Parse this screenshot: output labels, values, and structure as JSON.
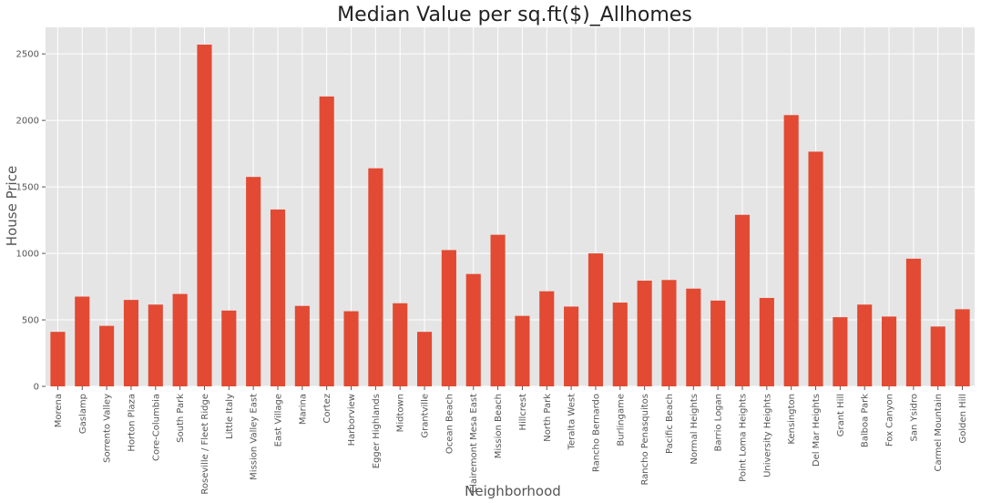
{
  "chart_data": {
    "type": "bar",
    "title": "Median Value per sq.ft($)_Allhomes",
    "xlabel": "Neighborhood",
    "ylabel": "House Price",
    "ylim": [
      0,
      2700
    ],
    "yticks": [
      0,
      500,
      1000,
      1500,
      2000,
      2500
    ],
    "grid": true,
    "categories": [
      "Morena",
      "Gaslamp",
      "Sorrento Valley",
      "Horton Plaza",
      "Core-Columbia",
      "South Park",
      "Roseville / Fleet Ridge",
      "Little Italy",
      "Mission Valley East",
      "East Village",
      "Marina",
      "Cortez",
      "Harborview",
      "Egger Highlands",
      "Midtown",
      "Grantville",
      "Ocean Beach",
      "Clairemont Mesa East",
      "Mission Beach",
      "Hillcrest",
      "North Park",
      "Teralta West",
      "Rancho Bernardo",
      "Burlingame",
      "Rancho Penasquitos",
      "Pacific Beach",
      "Normal Heights",
      "Barrio Logan",
      "Point Loma Heights",
      "University Heights",
      "Kensington",
      "Del Mar Heights",
      "Grant Hill",
      "Balboa Park",
      "Fox Canyon",
      "San Ysidro",
      "Carmel Mountain",
      "Golden Hill"
    ],
    "values": [
      410,
      675,
      455,
      650,
      615,
      695,
      2570,
      570,
      1575,
      1330,
      605,
      2180,
      565,
      1640,
      625,
      410,
      1025,
      845,
      1140,
      530,
      715,
      600,
      1000,
      630,
      795,
      800,
      735,
      645,
      1290,
      665,
      2040,
      1765,
      520,
      615,
      525,
      960,
      450,
      580
    ],
    "colors": {
      "bar": "#E24A33",
      "plot_background": "#E5E5E5",
      "grid": "#FFFFFF"
    }
  }
}
